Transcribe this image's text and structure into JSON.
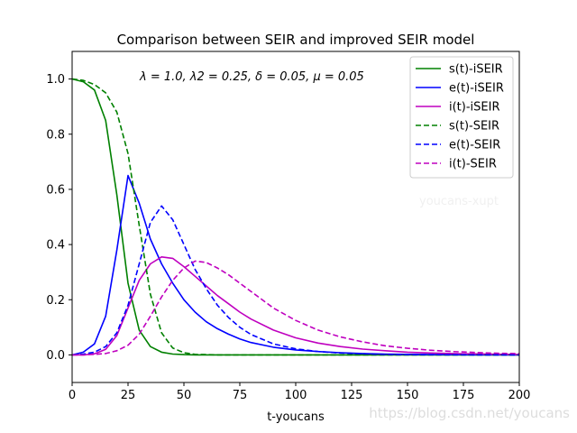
{
  "chart_data": {
    "type": "line",
    "title": "Comparison between SEIR and improved SEIR model",
    "xlabel": "t-youcans",
    "ylabel": "",
    "xlim": [
      0,
      200
    ],
    "ylim": [
      -0.1,
      1.1
    ],
    "xticks": [
      0,
      25,
      50,
      75,
      100,
      125,
      150,
      175,
      200
    ],
    "yticks": [
      0.0,
      0.2,
      0.4,
      0.6,
      0.8,
      1.0
    ],
    "xtick_labels": [
      "0",
      "25",
      "50",
      "75",
      "100",
      "125",
      "150",
      "175",
      "200"
    ],
    "ytick_labels": [
      "0.0",
      "0.2",
      "0.4",
      "0.6",
      "0.8",
      "1.0"
    ],
    "annotation": "λ = 1.0, λ2 = 0.25, δ = 0.05, μ = 0.05",
    "legend_position": "top-right",
    "x": [
      0,
      5,
      10,
      15,
      20,
      25,
      30,
      35,
      40,
      45,
      50,
      55,
      60,
      65,
      70,
      75,
      80,
      90,
      100,
      110,
      120,
      130,
      140,
      150,
      160,
      170,
      180,
      190,
      200
    ],
    "series": [
      {
        "name": "s(t)-iSEIR",
        "color": "#008000",
        "dash": "solid",
        "values": [
          1.0,
          0.99,
          0.96,
          0.85,
          0.58,
          0.26,
          0.09,
          0.03,
          0.01,
          0.003,
          0.001,
          0,
          0,
          0,
          0,
          0,
          0,
          0,
          0,
          0,
          0,
          0,
          0,
          0,
          0,
          0,
          0,
          0,
          0
        ]
      },
      {
        "name": "e(t)-iSEIR",
        "color": "#0000ff",
        "dash": "solid",
        "values": [
          0.0,
          0.01,
          0.04,
          0.14,
          0.38,
          0.65,
          0.55,
          0.42,
          0.33,
          0.26,
          0.2,
          0.155,
          0.12,
          0.095,
          0.075,
          0.058,
          0.045,
          0.028,
          0.018,
          0.012,
          0.008,
          0.005,
          0.003,
          0.002,
          0.001,
          0.0008,
          0.0005,
          0.0003,
          0.0002
        ]
      },
      {
        "name": "i(t)-iSEIR",
        "color": "#bf00bf",
        "dash": "solid",
        "values": [
          0.0,
          0.0,
          0.004,
          0.02,
          0.07,
          0.17,
          0.27,
          0.33,
          0.355,
          0.35,
          0.32,
          0.285,
          0.25,
          0.215,
          0.185,
          0.155,
          0.13,
          0.09,
          0.062,
          0.043,
          0.03,
          0.021,
          0.015,
          0.01,
          0.007,
          0.005,
          0.0035,
          0.0025,
          0.0017
        ]
      },
      {
        "name": "s(t)-SEIR",
        "color": "#008000",
        "dash": "dashed",
        "values": [
          1.0,
          0.995,
          0.98,
          0.95,
          0.88,
          0.73,
          0.47,
          0.22,
          0.08,
          0.025,
          0.008,
          0.002,
          0.001,
          0,
          0,
          0,
          0,
          0,
          0,
          0,
          0,
          0,
          0,
          0,
          0,
          0,
          0,
          0,
          0
        ]
      },
      {
        "name": "e(t)-SEIR",
        "color": "#0000ff",
        "dash": "dashed",
        "values": [
          0.0,
          0.003,
          0.01,
          0.03,
          0.08,
          0.18,
          0.33,
          0.48,
          0.54,
          0.49,
          0.4,
          0.31,
          0.24,
          0.18,
          0.135,
          0.1,
          0.074,
          0.04,
          0.022,
          0.012,
          0.007,
          0.004,
          0.002,
          0.001,
          0.0006,
          0.0003,
          0.0002,
          0.0001,
          0
        ]
      },
      {
        "name": "i(t)-SEIR",
        "color": "#bf00bf",
        "dash": "dashed",
        "values": [
          0.0,
          0.0,
          0.002,
          0.005,
          0.015,
          0.035,
          0.075,
          0.14,
          0.21,
          0.27,
          0.315,
          0.34,
          0.335,
          0.315,
          0.29,
          0.26,
          0.23,
          0.17,
          0.125,
          0.09,
          0.065,
          0.047,
          0.033,
          0.024,
          0.017,
          0.012,
          0.009,
          0.006,
          0.0045
        ]
      }
    ]
  },
  "watermarks": {
    "inner": "youcans-xupt",
    "corner": "https://blog.csdn.net/youcans"
  }
}
